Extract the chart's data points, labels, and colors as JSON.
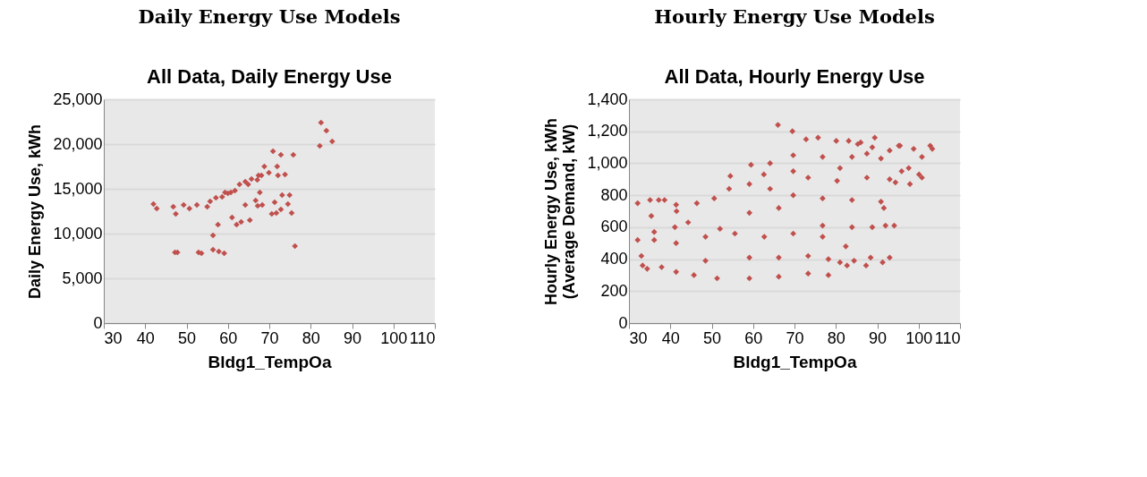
{
  "chart_data": [
    {
      "type": "scatter",
      "title": "All Data, Daily Energy Use",
      "annotations": [
        "Daily Energy Use Models"
      ],
      "xlabel": "Bldg1_TempOa",
      "ylabel": "Daily Energy Use, kWh",
      "marker": "diamond",
      "grid": "y",
      "legend": false,
      "xlim": [
        30,
        110
      ],
      "xticks": [
        30,
        40,
        50,
        60,
        70,
        80,
        90,
        100,
        110
      ],
      "ylim": [
        0,
        25000
      ],
      "yticks": [
        {
          "value": 0,
          "label": "0"
        },
        {
          "value": 5000,
          "label": "5,000"
        },
        {
          "value": 10000,
          "label": "10,000"
        },
        {
          "value": 15000,
          "label": "15,000"
        },
        {
          "value": 20000,
          "label": "20,000"
        },
        {
          "value": 25000,
          "label": "25,000"
        }
      ],
      "series": [
        {
          "color": "#c0504d",
          "x": [
            42.0,
            42.8,
            47.2,
            47.8,
            47.4,
            46.8,
            49.3,
            50.7,
            52.9,
            53.6,
            56.4,
            57.8,
            59.1,
            56.4,
            57.6,
            52.5,
            55.0,
            55.7,
            57.1,
            59.3,
            61.0,
            62.1,
            63.2,
            64.2,
            65.3,
            66.7,
            62.8,
            64.2,
            65.7,
            67.4,
            68.8,
            69.9,
            60.7,
            61.7,
            67.7,
            67.2,
            68.3,
            70.9,
            72.8,
            75.8,
            71.9,
            72.1,
            73.8,
            71.3,
            70.6,
            71.7,
            72.8,
            73.1,
            74.9,
            74.5,
            75.4,
            76.2,
            82.5,
            83.8,
            85.2,
            82.2,
            58.6,
            60.0,
            64.9,
            67.1,
            68.1
          ],
          "values": [
            13300,
            12800,
            7900,
            7900,
            12200,
            13000,
            13200,
            12800,
            7900,
            7800,
            8200,
            8000,
            7800,
            9800,
            11000,
            13200,
            13000,
            13600,
            14000,
            14600,
            11800,
            11000,
            11300,
            13200,
            11500,
            13700,
            15500,
            15800,
            16100,
            16500,
            17500,
            16800,
            14600,
            14800,
            14600,
            13100,
            13200,
            19200,
            18800,
            18800,
            17500,
            16500,
            16600,
            13500,
            12200,
            12300,
            12700,
            14300,
            14300,
            13300,
            12300,
            8600,
            22400,
            21500,
            20300,
            19800,
            14100,
            14500,
            15500,
            16000,
            16500
          ]
        }
      ]
    },
    {
      "type": "scatter",
      "title": "All Data, Hourly Energy Use",
      "annotations": [
        "Hourly Energy Use Models"
      ],
      "xlabel": "Bldg1_TempOa",
      "ylabel": "Hourly Energy Use, kWh\n(Average Demand, kW)",
      "marker": "diamond",
      "grid": "y",
      "legend": false,
      "xlim": [
        30,
        110
      ],
      "xticks": [
        30,
        40,
        50,
        60,
        70,
        80,
        90,
        100,
        110
      ],
      "ylim": [
        0,
        1400
      ],
      "yticks": [
        0,
        200,
        400,
        600,
        800,
        {
          "value": 1000,
          "label": "1,000"
        },
        {
          "value": 1200,
          "label": "1,200"
        },
        {
          "value": 1400,
          "label": "1,400"
        }
      ],
      "series": [
        {
          "color": "#c0504d",
          "x": [
            32.1,
            32.1,
            33.0,
            33.3,
            35.1,
            37.2,
            38.6,
            35.4,
            36.1,
            36.1,
            41.1,
            44.3,
            41.5,
            66.0,
            69.5,
            72.8,
            75.7,
            80.1,
            83.1,
            86.0,
            89.4,
            95.5,
            98.8,
            102.8,
            103.3,
            100.8,
            95.9,
            97.6,
            100.1,
            100.8,
            97.9,
            93.0,
            94.4,
            92.0,
            94.1,
            93.0,
            91.3,
            88.4,
            87.3,
            84.4,
            82.7,
            81.0,
            78.2,
            59.5,
            54.5,
            34.4,
            37.9,
            41.4,
            45.7,
            51.3,
            59.1,
            66.2,
            73.3,
            78.2,
            41.4,
            48.5,
            55.6,
            62.7,
            69.7,
            76.8,
            82.4,
            76.8,
            83.9,
            88.8,
            41.4,
            46.4,
            50.6,
            54.2,
            59.1,
            64.1,
            69.7,
            76.8,
            83.9,
            90.9,
            91.6,
            64.1,
            69.7,
            76.8,
            83.9,
            87.5,
            90.9,
            93.0,
            95.2,
            59.1,
            66.2,
            73.3,
            80.3,
            87.5,
            52.0,
            59.1,
            66.2,
            73.3,
            48.5,
            69.7,
            62.6,
            81.0,
            85.3,
            88.8
          ],
          "values": [
            750,
            520,
            420,
            360,
            770,
            770,
            770,
            670,
            570,
            520,
            600,
            630,
            700,
            1240,
            1200,
            1150,
            1160,
            1140,
            1140,
            1130,
            1160,
            1110,
            1090,
            1110,
            1090,
            1040,
            950,
            970,
            930,
            910,
            870,
            900,
            880,
            610,
            610,
            410,
            380,
            410,
            360,
            390,
            360,
            380,
            400,
            990,
            920,
            340,
            350,
            320,
            300,
            280,
            280,
            290,
            310,
            300,
            500,
            540,
            560,
            540,
            560,
            540,
            480,
            610,
            600,
            600,
            740,
            750,
            780,
            840,
            870,
            840,
            800,
            780,
            770,
            760,
            720,
            1000,
            1050,
            1040,
            1040,
            1060,
            1030,
            1080,
            1110,
            690,
            720,
            910,
            890,
            910,
            590,
            410,
            410,
            420,
            390,
            950,
            930,
            970,
            1120,
            1100
          ]
        }
      ]
    }
  ]
}
